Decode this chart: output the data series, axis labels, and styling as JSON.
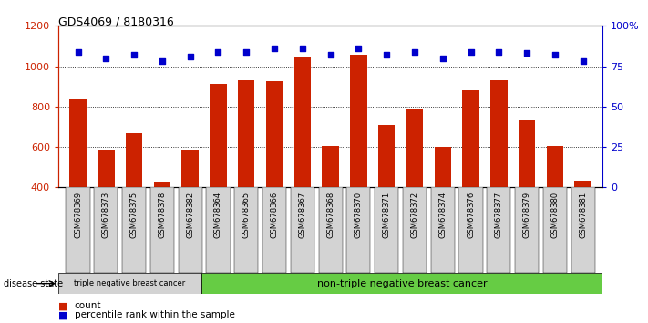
{
  "title": "GDS4069 / 8180316",
  "samples": [
    "GSM678369",
    "GSM678373",
    "GSM678375",
    "GSM678378",
    "GSM678382",
    "GSM678364",
    "GSM678365",
    "GSM678366",
    "GSM678367",
    "GSM678368",
    "GSM678370",
    "GSM678371",
    "GSM678372",
    "GSM678374",
    "GSM678376",
    "GSM678377",
    "GSM678379",
    "GSM678380",
    "GSM678381"
  ],
  "counts": [
    835,
    585,
    670,
    430,
    585,
    910,
    930,
    925,
    1045,
    607,
    1055,
    710,
    785,
    600,
    880,
    930,
    730,
    607,
    435
  ],
  "percentiles": [
    84,
    80,
    82,
    78,
    81,
    84,
    84,
    86,
    86,
    82,
    86,
    82,
    84,
    80,
    84,
    84,
    83,
    82,
    78
  ],
  "group1_count": 5,
  "group1_label": "triple negative breast cancer",
  "group2_label": "non-triple negative breast cancer",
  "bar_color": "#cc2200",
  "dot_color": "#0000cc",
  "ylim_left": [
    400,
    1200
  ],
  "yticks_left": [
    400,
    600,
    800,
    1000,
    1200
  ],
  "ylim_right": [
    0,
    100
  ],
  "yticks_right": [
    0,
    25,
    50,
    75,
    100
  ],
  "ytick_labels_right": [
    "0",
    "25",
    "50",
    "75",
    "100%"
  ],
  "grid_values": [
    600,
    800,
    1000
  ],
  "legend_count_label": "count",
  "legend_pct_label": "percentile rank within the sample",
  "disease_state_label": "disease state",
  "group1_bg": "#d3d3d3",
  "group2_bg": "#66cc44",
  "tick_bg": "#d3d3d3"
}
